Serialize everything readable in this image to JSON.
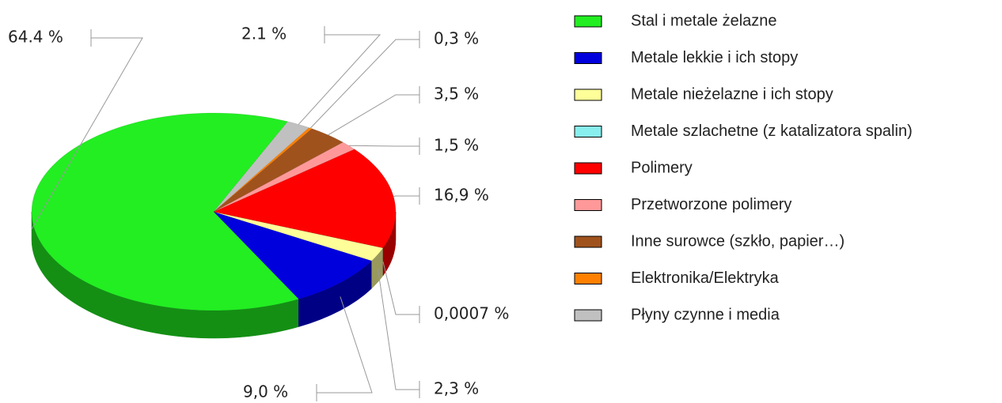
{
  "chart_data": {
    "type": "pie",
    "categories": [
      "Stal i metale żelazne",
      "Metale lekkie i ich stopy",
      "Metale nieżelazne i ich stopy",
      "Metale szlachetne (z katalizatora spalin)",
      "Polimery",
      "Przetworzone polimery",
      "Inne surowce (szkło, papier…)",
      "Elektronika/Elektryka",
      "Płyny czynne i media"
    ],
    "values": [
      64.4,
      9.0,
      2.3,
      0.0007,
      16.9,
      1.5,
      3.5,
      0.3,
      2.1
    ],
    "value_labels": [
      "64.4 %",
      "9,0 %",
      "2,3 %",
      "0,0007 %",
      "16,9 %",
      "1,5 %",
      "3,5 %",
      "0,3 %",
      "2.1 %"
    ],
    "colors": [
      "#22ee22",
      "#0000dd",
      "#ffff99",
      "#88eeee",
      "#ff0000",
      "#ff9999",
      "#a0521d",
      "#ff8000",
      "#c0c0c0"
    ],
    "legend": "right"
  }
}
